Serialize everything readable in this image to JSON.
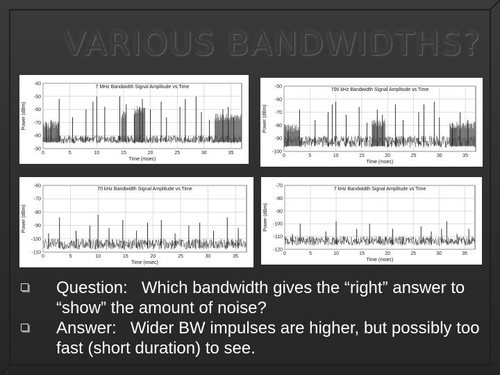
{
  "slide": {
    "title": "VARIOUS BANDWIDTHS?",
    "bullets": [
      {
        "text": "Question:   Which bandwidth gives the “right” answer to “show” the amount of noise?"
      },
      {
        "text": "Answer:   Wider BW impulses are higher, but possibly too fast (short duration) to see."
      }
    ]
  },
  "chart_data": [
    {
      "type": "line",
      "title": "7 MHz Bandwidth Signal Amplitude vs Time",
      "xlabel": "Time (msec)",
      "ylabel": "Power (dBm)",
      "xlim": [
        0,
        37
      ],
      "ylim": [
        -90,
        -40
      ],
      "xticks": [
        "0",
        "5",
        "10",
        "15",
        "20",
        "25",
        "30",
        "35"
      ],
      "yticks": [
        "-40",
        "-50",
        "-60",
        "-70",
        "-80",
        "-90"
      ],
      "noise_floor": -85,
      "noise_band": [
        -86,
        -80
      ],
      "grid": true,
      "impulses": [
        {
          "x": 0.6,
          "y": -70
        },
        {
          "x": 1.5,
          "y": -68
        },
        {
          "x": 3.0,
          "y": -52
        },
        {
          "x": 5.5,
          "y": -66
        },
        {
          "x": 8.0,
          "y": -60
        },
        {
          "x": 9.3,
          "y": -54
        },
        {
          "x": 10.0,
          "y": -50
        },
        {
          "x": 11.5,
          "y": -58
        },
        {
          "x": 14.3,
          "y": -50
        },
        {
          "x": 15.5,
          "y": -56
        },
        {
          "x": 17.0,
          "y": -64
        },
        {
          "x": 18.0,
          "y": -58
        },
        {
          "x": 18.5,
          "y": -52
        },
        {
          "x": 20.0,
          "y": -60
        },
        {
          "x": 22.0,
          "y": -54
        },
        {
          "x": 23.0,
          "y": -66
        },
        {
          "x": 25.5,
          "y": -58
        },
        {
          "x": 26.5,
          "y": -52
        },
        {
          "x": 28.5,
          "y": -50
        },
        {
          "x": 29.5,
          "y": -62
        },
        {
          "x": 31.0,
          "y": -68
        },
        {
          "x": 33.5,
          "y": -60
        },
        {
          "x": 34.5,
          "y": -58
        },
        {
          "x": 35.5,
          "y": -66
        }
      ],
      "bursts": [
        {
          "x": [
            0,
            3
          ],
          "y": -72
        },
        {
          "x": 15,
          "y": -64
        },
        {
          "x": [
            17,
            19
          ],
          "y": -60
        },
        {
          "x": [
            32,
            37
          ],
          "y": -66
        }
      ]
    },
    {
      "type": "line",
      "title": "700 kHz Bandwidth Signal Amplitude vs Time",
      "xlabel": "Time (msec)",
      "ylabel": "Power (dBm)",
      "xlim": [
        0,
        37
      ],
      "ylim": [
        -100,
        -50
      ],
      "xticks": [
        "0",
        "5",
        "10",
        "15",
        "20",
        "25",
        "30",
        "35"
      ],
      "yticks": [
        "-50",
        "-60",
        "-70",
        "-80",
        "-90",
        "-100"
      ],
      "noise_floor": -96,
      "noise_band": [
        -97,
        -88
      ],
      "grid": true,
      "impulses": [
        {
          "x": 0.8,
          "y": -80
        },
        {
          "x": 3.0,
          "y": -68
        },
        {
          "x": 6.0,
          "y": -76
        },
        {
          "x": 8.5,
          "y": -70
        },
        {
          "x": 9.3,
          "y": -64
        },
        {
          "x": 10.0,
          "y": -62
        },
        {
          "x": 12.0,
          "y": -72
        },
        {
          "x": 14.5,
          "y": -66
        },
        {
          "x": 16.0,
          "y": -78
        },
        {
          "x": 18.0,
          "y": -68
        },
        {
          "x": 19.0,
          "y": -72
        },
        {
          "x": 21.5,
          "y": -64
        },
        {
          "x": 23.0,
          "y": -76
        },
        {
          "x": 26.0,
          "y": -70
        },
        {
          "x": 27.0,
          "y": -64
        },
        {
          "x": 29.0,
          "y": -62
        },
        {
          "x": 30.0,
          "y": -74
        },
        {
          "x": 32.5,
          "y": -78
        },
        {
          "x": 34.0,
          "y": -70
        },
        {
          "x": 35.5,
          "y": -76
        }
      ],
      "bursts": [
        {
          "x": [
            0,
            3
          ],
          "y": -82
        },
        {
          "x": [
            17,
            19.5
          ],
          "y": -78
        },
        {
          "x": [
            32,
            37
          ],
          "y": -80
        }
      ]
    },
    {
      "type": "line",
      "title": "70 kHz Bandwidth Signal Amplitude vs Time",
      "xlabel": "Time (msec)",
      "ylabel": "Power (dBm)",
      "xlim": [
        0,
        37
      ],
      "ylim": [
        -110,
        -60
      ],
      "xticks": [
        "0",
        "5",
        "10",
        "15",
        "20",
        "25",
        "30",
        "35"
      ],
      "yticks": [
        "-60",
        "-70",
        "-80",
        "-90",
        "-100",
        "-110"
      ],
      "noise_floor": -107,
      "noise_band": [
        -108,
        -100
      ],
      "grid": true,
      "impulses": [
        {
          "x": 1.0,
          "y": -96
        },
        {
          "x": 3.0,
          "y": -84
        },
        {
          "x": 6.0,
          "y": -94
        },
        {
          "x": 8.5,
          "y": -90
        },
        {
          "x": 10.0,
          "y": -82
        },
        {
          "x": 12.0,
          "y": -92
        },
        {
          "x": 14.5,
          "y": -86
        },
        {
          "x": 17.0,
          "y": -94
        },
        {
          "x": 19.0,
          "y": -88
        },
        {
          "x": 21.5,
          "y": -86
        },
        {
          "x": 24.0,
          "y": -96
        },
        {
          "x": 26.5,
          "y": -90
        },
        {
          "x": 28.5,
          "y": -88
        },
        {
          "x": 31.0,
          "y": -94
        },
        {
          "x": 33.5,
          "y": -84
        },
        {
          "x": 35.5,
          "y": -92
        }
      ],
      "bursts": []
    },
    {
      "type": "line",
      "title": "7 kHz Bandwidth Signal Amplitude vs Time",
      "xlabel": "Time (msec)",
      "ylabel": "Power (dBm)",
      "xlim": [
        0,
        37
      ],
      "ylim": [
        -120,
        -70
      ],
      "xticks": [
        "0",
        "5",
        "10",
        "15",
        "20",
        "25",
        "30",
        "35"
      ],
      "yticks": [
        "-70",
        "-80",
        "-90",
        "-100",
        "-110",
        "-120"
      ],
      "noise_floor": -116,
      "noise_band": [
        -117,
        -110
      ],
      "grid": true,
      "impulses": [
        {
          "x": 1.5,
          "y": -108
        },
        {
          "x": 3.0,
          "y": -100
        },
        {
          "x": 8.0,
          "y": -106
        },
        {
          "x": 10.0,
          "y": -98
        },
        {
          "x": 11.5,
          "y": -110
        },
        {
          "x": 14.0,
          "y": -104
        },
        {
          "x": 16.5,
          "y": -100
        },
        {
          "x": 18.5,
          "y": -110
        },
        {
          "x": 21.0,
          "y": -104
        },
        {
          "x": 23.0,
          "y": -110
        },
        {
          "x": 26.5,
          "y": -102
        },
        {
          "x": 28.5,
          "y": -106
        },
        {
          "x": 30.5,
          "y": -104
        },
        {
          "x": 31.5,
          "y": -98
        },
        {
          "x": 33.5,
          "y": -108
        },
        {
          "x": 35.8,
          "y": -104
        }
      ],
      "bursts": []
    }
  ]
}
